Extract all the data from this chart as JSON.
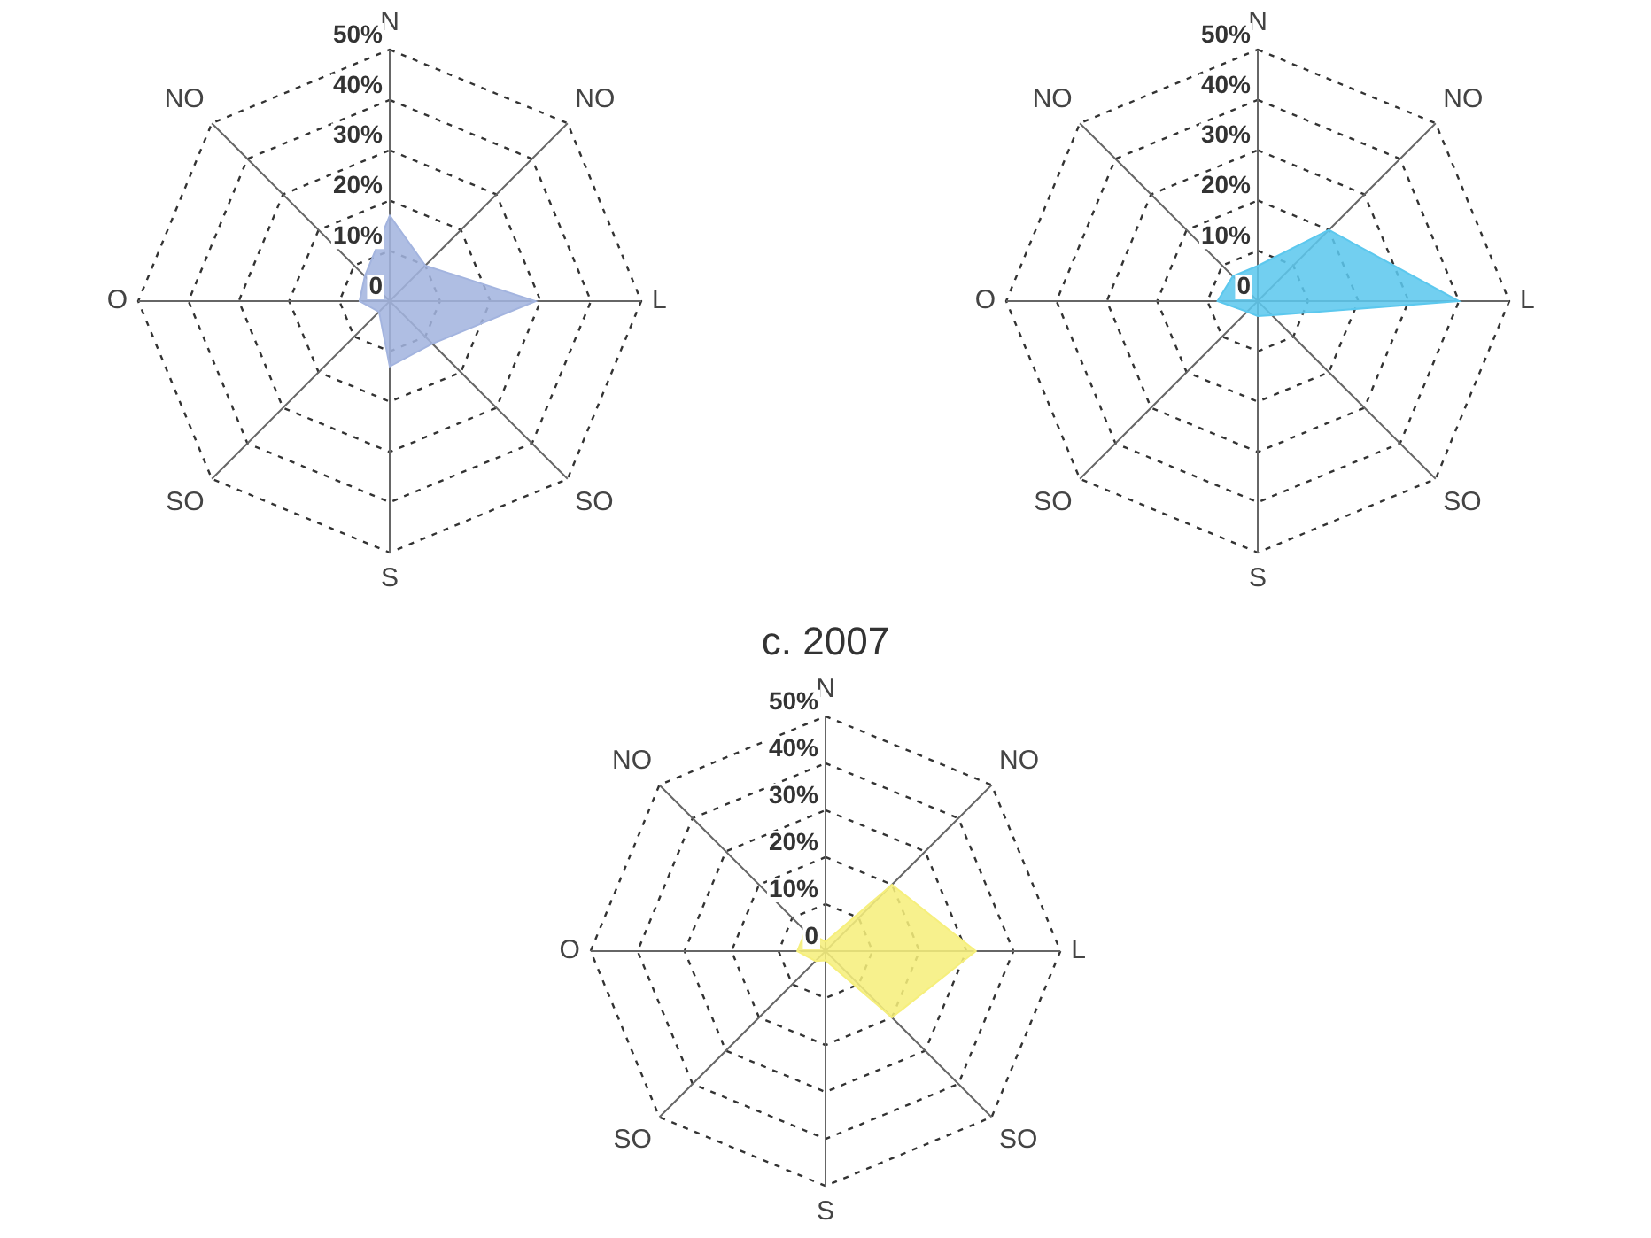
{
  "chart_data": [
    {
      "type": "radar",
      "categories": [
        "N",
        "NO",
        "L",
        "SO",
        "S",
        "SO",
        "O",
        "NO"
      ],
      "series": [
        {
          "color": "#a3b4df",
          "values": [
            17,
            10,
            29,
            12,
            13,
            3,
            6,
            7
          ]
        }
      ],
      "ylim": [
        0,
        50
      ],
      "yticks": [
        {
          "value": 0,
          "label": "0"
        },
        {
          "value": 10,
          "label": "10%"
        },
        {
          "value": 20,
          "label": "20%"
        },
        {
          "value": 30,
          "label": "30%"
        },
        {
          "value": 40,
          "label": "40%"
        },
        {
          "value": 50,
          "label": "50%"
        }
      ],
      "grid": true,
      "marker": "none",
      "legend": false
    },
    {
      "type": "radar",
      "categories": [
        "N",
        "NO",
        "L",
        "SO",
        "S",
        "SO",
        "O",
        "NO"
      ],
      "series": [
        {
          "color": "#5cc8ee",
          "values": [
            7,
            20,
            40,
            4,
            3,
            3,
            8,
            7
          ]
        }
      ],
      "ylim": [
        0,
        50
      ],
      "yticks": [
        {
          "value": 0,
          "label": "0"
        },
        {
          "value": 10,
          "label": "10%"
        },
        {
          "value": 20,
          "label": "20%"
        },
        {
          "value": 30,
          "label": "30%"
        },
        {
          "value": 40,
          "label": "40%"
        },
        {
          "value": 50,
          "label": "50%"
        }
      ],
      "grid": true,
      "marker": "none",
      "legend": false
    },
    {
      "type": "radar",
      "title": "c. 2007",
      "categories": [
        "N",
        "NO",
        "L",
        "SO",
        "S",
        "SO",
        "O",
        "NO"
      ],
      "series": [
        {
          "color": "#f6ef7c",
          "values": [
            2,
            20,
            32,
            20,
            2,
            3,
            6,
            6
          ]
        }
      ],
      "ylim": [
        0,
        50
      ],
      "yticks": [
        {
          "value": 0,
          "label": "0"
        },
        {
          "value": 10,
          "label": "10%"
        },
        {
          "value": 20,
          "label": "20%"
        },
        {
          "value": 30,
          "label": "30%"
        },
        {
          "value": 40,
          "label": "40%"
        },
        {
          "value": 50,
          "label": "50%"
        }
      ],
      "grid": true,
      "marker": "none",
      "legend": false
    }
  ]
}
